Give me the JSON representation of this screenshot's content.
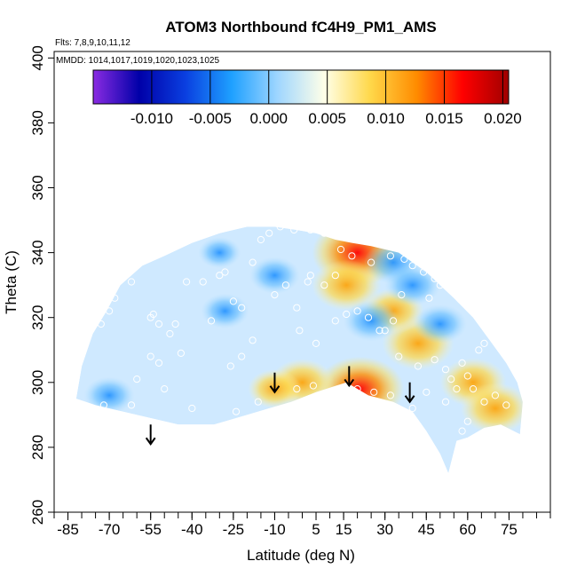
{
  "chart_data": {
    "type": "heatmap",
    "title": "ATOM3 Northbound fC4H9_PM1_AMS",
    "flights_note": "Flts: 7,8,9,10,11,12",
    "dates_note": "MMDD: 1014,1017,1019,1020,1023,1025",
    "xlabel": "Latitude (deg N)",
    "ylabel": "Theta (C)",
    "xlim": [
      -90,
      90
    ],
    "ylim": [
      260,
      402
    ],
    "x_ticks": [
      -85,
      -70,
      -55,
      -40,
      -25,
      -10,
      5,
      15,
      30,
      45,
      60,
      75
    ],
    "y_ticks": [
      260,
      280,
      300,
      320,
      340,
      360,
      380,
      400
    ],
    "colorbar": {
      "min": -0.015,
      "max": 0.0205,
      "ticks": [
        "-0.010",
        "-0.005",
        "0.000",
        "0.005",
        "0.010",
        "0.015",
        "0.020"
      ],
      "tick_values": [
        -0.01,
        -0.005,
        0.0,
        0.005,
        0.01,
        0.015,
        0.02
      ],
      "colors": [
        "#8a2be2",
        "#0000a8",
        "#0a3fe0",
        "#1ea0ff",
        "#9fd6ff",
        "#ffffe8",
        "#ffd84a",
        "#ff8c00",
        "#ff0000",
        "#a00000"
      ]
    },
    "tropopause_arrows_lat": [
      -55,
      -10,
      17,
      39
    ],
    "tropopause_arrows_theta": [
      281,
      297,
      299,
      294
    ],
    "field_outline": [
      [
        -82,
        295
      ],
      [
        -80,
        305
      ],
      [
        -76,
        315
      ],
      [
        -71,
        322
      ],
      [
        -66,
        330
      ],
      [
        -58,
        336
      ],
      [
        -50,
        339
      ],
      [
        -40,
        343
      ],
      [
        -30,
        346
      ],
      [
        -20,
        348
      ],
      [
        -10,
        348
      ],
      [
        -2,
        347
      ],
      [
        5,
        346
      ],
      [
        12,
        344
      ],
      [
        18,
        343
      ],
      [
        25,
        342
      ],
      [
        35,
        340
      ],
      [
        45,
        334
      ],
      [
        55,
        326
      ],
      [
        62,
        320
      ],
      [
        68,
        313
      ],
      [
        74,
        306
      ],
      [
        78,
        300
      ],
      [
        80,
        294
      ],
      [
        79,
        284
      ],
      [
        72,
        287
      ],
      [
        66,
        286
      ],
      [
        60,
        283
      ],
      [
        56,
        282
      ],
      [
        53,
        272
      ],
      [
        50,
        278
      ],
      [
        45,
        285
      ],
      [
        40,
        291
      ],
      [
        33,
        294
      ],
      [
        24,
        296
      ],
      [
        16,
        300
      ],
      [
        5,
        297
      ],
      [
        -4,
        294
      ],
      [
        -12,
        292
      ],
      [
        -20,
        290
      ],
      [
        -32,
        287
      ],
      [
        -45,
        287
      ],
      [
        -55,
        289
      ],
      [
        -65,
        291
      ],
      [
        -75,
        293
      ]
    ],
    "anomaly_cores": [
      {
        "lat": 20,
        "theta": 340,
        "value": 0.02
      },
      {
        "lat": 16,
        "theta": 330,
        "value": 0.012
      },
      {
        "lat": 21,
        "theta": 298,
        "value": 0.019
      },
      {
        "lat": 42,
        "theta": 312,
        "value": 0.013
      },
      {
        "lat": 33,
        "theta": 322,
        "value": 0.009
      },
      {
        "lat": 62,
        "theta": 300,
        "value": 0.011
      },
      {
        "lat": 70,
        "theta": 292,
        "value": 0.012
      },
      {
        "lat": 0,
        "theta": 300,
        "value": 0.01
      },
      {
        "lat": -10,
        "theta": 298,
        "value": 0.006
      },
      {
        "lat": 33,
        "theta": 337,
        "value": -0.008
      },
      {
        "lat": 40,
        "theta": 330,
        "value": -0.007
      },
      {
        "lat": 50,
        "theta": 318,
        "value": -0.006
      },
      {
        "lat": -10,
        "theta": 333,
        "value": -0.005
      },
      {
        "lat": -28,
        "theta": 322,
        "value": -0.004
      },
      {
        "lat": -70,
        "theta": 296,
        "value": -0.005
      },
      {
        "lat": 25,
        "theta": 319,
        "value": -0.007
      },
      {
        "lat": -30,
        "theta": 340,
        "value": -0.002
      }
    ],
    "observations": [
      [
        -80,
        312
      ],
      [
        -73,
        318
      ],
      [
        -70,
        322
      ],
      [
        -68,
        326
      ],
      [
        -62,
        331
      ],
      [
        -55,
        320
      ],
      [
        -54,
        321
      ],
      [
        -52,
        318
      ],
      [
        -48,
        315
      ],
      [
        -46,
        318
      ],
      [
        -44,
        309
      ],
      [
        -52,
        306
      ],
      [
        -55,
        308
      ],
      [
        -60,
        301
      ],
      [
        -72,
        293
      ],
      [
        -62,
        293
      ],
      [
        -42,
        331
      ],
      [
        -36,
        331
      ],
      [
        -33,
        319
      ],
      [
        -30,
        333
      ],
      [
        -28,
        334
      ],
      [
        -25,
        325
      ],
      [
        -22,
        323
      ],
      [
        -18,
        337
      ],
      [
        -15,
        344
      ],
      [
        -12,
        346
      ],
      [
        -8,
        348
      ],
      [
        -3,
        347
      ],
      [
        3,
        347
      ],
      [
        8,
        346
      ],
      [
        -18,
        313
      ],
      [
        -22,
        308
      ],
      [
        -26,
        305
      ],
      [
        -10,
        327
      ],
      [
        -6,
        330
      ],
      [
        -2,
        323
      ],
      [
        2,
        331
      ],
      [
        3,
        333
      ],
      [
        8,
        330
      ],
      [
        12,
        333
      ],
      [
        14,
        341
      ],
      [
        18,
        339
      ],
      [
        25,
        337
      ],
      [
        32,
        339
      ],
      [
        37,
        338
      ],
      [
        40,
        336
      ],
      [
        44,
        334
      ],
      [
        48,
        332
      ],
      [
        50,
        330
      ],
      [
        46,
        326
      ],
      [
        36,
        327
      ],
      [
        33,
        319
      ],
      [
        30,
        316
      ],
      [
        28,
        316
      ],
      [
        24,
        320
      ],
      [
        20,
        322
      ],
      [
        16,
        321
      ],
      [
        12,
        319
      ],
      [
        5,
        312
      ],
      [
        -1,
        316
      ],
      [
        35,
        308
      ],
      [
        42,
        305
      ],
      [
        48,
        307
      ],
      [
        52,
        304
      ],
      [
        54,
        301
      ],
      [
        58,
        306
      ],
      [
        60,
        302
      ],
      [
        64,
        310
      ],
      [
        66,
        312
      ],
      [
        70,
        316
      ],
      [
        56,
        298
      ],
      [
        62,
        298
      ],
      [
        66,
        294
      ],
      [
        70,
        296
      ],
      [
        74,
        293
      ],
      [
        60,
        288
      ],
      [
        58,
        285
      ],
      [
        52,
        294
      ],
      [
        45,
        297
      ],
      [
        40,
        292
      ],
      [
        32,
        296
      ],
      [
        26,
        297
      ],
      [
        20,
        298
      ],
      [
        4,
        299
      ],
      [
        -2,
        298
      ],
      [
        -16,
        294
      ],
      [
        -24,
        291
      ],
      [
        -40,
        292
      ],
      [
        -50,
        298
      ]
    ]
  }
}
